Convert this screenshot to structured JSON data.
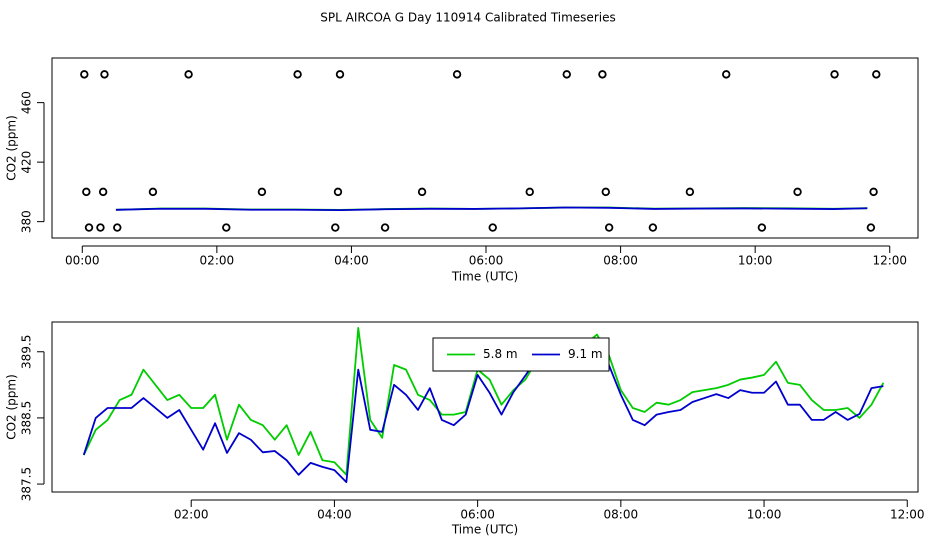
{
  "title": "SPL AIRCOA G  Day 110914  Calibrated Timeseries",
  "chart_data": [
    {
      "type": "line",
      "xlabel": "Time (UTC)",
      "ylabel": "CO2 (ppm)",
      "xlim": [
        -0.45,
        12.42
      ],
      "ylim": [
        369,
        490
      ],
      "xticks": [
        {
          "value": 0,
          "label": "00:00"
        },
        {
          "value": 2,
          "label": "02:00"
        },
        {
          "value": 4,
          "label": "04:00"
        },
        {
          "value": 6,
          "label": "06:00"
        },
        {
          "value": 8,
          "label": "08:00"
        },
        {
          "value": 10,
          "label": "10:00"
        },
        {
          "value": 12,
          "label": "12:00"
        }
      ],
      "yticks": [
        380,
        420,
        460
      ],
      "series": [
        {
          "color": "#000000",
          "marker": "circle",
          "x": [
            0.03,
            0.33,
            1.58,
            3.2,
            3.83,
            5.57,
            7.2,
            7.73,
            9.57,
            11.18,
            11.8
          ],
          "values": [
            479,
            479,
            479,
            479,
            479,
            479,
            479,
            479,
            479,
            479,
            479
          ]
        },
        {
          "color": "#000000",
          "marker": "circle",
          "x": [
            0.06,
            0.31,
            1.05,
            2.67,
            3.8,
            5.05,
            6.65,
            7.78,
            9.03,
            10.63,
            11.76
          ],
          "values": [
            400,
            400,
            400,
            400,
            400,
            400,
            400,
            400,
            400,
            400,
            400
          ]
        },
        {
          "color": "#000000",
          "marker": "circle",
          "x": [
            0.1,
            0.27,
            0.52,
            2.14,
            3.76,
            4.5,
            6.1,
            7.83,
            8.48,
            10.1,
            11.72
          ],
          "values": [
            376,
            376,
            376,
            376,
            376,
            376,
            376,
            376,
            376,
            376,
            376
          ]
        },
        {
          "color": "#00cc00",
          "x": [
            0.5,
            1.167,
            1.833,
            2.5,
            3.167,
            3.833,
            4.5,
            5.167,
            5.833,
            6.5,
            7.167,
            7.833,
            8.5,
            9.167,
            9.833,
            10.5,
            11.167,
            11.667
          ],
          "values": [
            387.94,
            388.85,
            388.85,
            388.17,
            388.17,
            387.86,
            388.47,
            388.85,
            388.59,
            388.92,
            389.45,
            389.45,
            388.73,
            388.92,
            389.11,
            389.0,
            388.65,
            389.03
          ]
        },
        {
          "color": "#0000cc",
          "x": [
            0.5,
            1.167,
            1.833,
            2.5,
            3.167,
            3.833,
            4.5,
            5.167,
            5.833,
            6.5,
            7.167,
            7.833,
            8.5,
            9.167,
            9.833,
            10.5,
            11.167,
            11.667
          ],
          "values": [
            387.94,
            388.65,
            388.62,
            387.97,
            388.0,
            387.76,
            388.32,
            388.62,
            388.55,
            388.89,
            389.48,
            389.3,
            388.55,
            388.8,
            388.88,
            388.7,
            388.47,
            388.98
          ]
        }
      ]
    },
    {
      "type": "line",
      "xlabel": "Time (UTC)",
      "ylabel": "CO2 (ppm)",
      "legend": "top",
      "xlim": [
        0.056,
        12.15
      ],
      "ylim": [
        387.38,
        389.95
      ],
      "xticks": [
        {
          "value": 2,
          "label": "02:00"
        },
        {
          "value": 4,
          "label": "04:00"
        },
        {
          "value": 6,
          "label": "06:00"
        },
        {
          "value": 8,
          "label": "08:00"
        },
        {
          "value": 10,
          "label": "10:00"
        },
        {
          "value": 12,
          "label": "12:00"
        }
      ],
      "yticks": [
        387.5,
        388.5,
        389.5
      ],
      "x": [
        0.5,
        0.667,
        0.833,
        1,
        1.167,
        1.333,
        1.5,
        1.667,
        1.833,
        2,
        2.167,
        2.333,
        2.5,
        2.667,
        2.833,
        3,
        3.167,
        3.333,
        3.5,
        3.667,
        3.833,
        4,
        4.167,
        4.333,
        4.5,
        4.667,
        4.833,
        5,
        5.167,
        5.333,
        5.5,
        5.667,
        5.833,
        6,
        6.167,
        6.333,
        6.5,
        6.667,
        6.833,
        7,
        7.167,
        7.333,
        7.5,
        7.667,
        7.833,
        8,
        8.167,
        8.333,
        8.5,
        8.667,
        8.833,
        9,
        9.167,
        9.333,
        9.5,
        9.667,
        9.833,
        10,
        10.167,
        10.333,
        10.5,
        10.667,
        10.833,
        11,
        11.167,
        11.333,
        11.5,
        11.667
      ],
      "series": [
        {
          "name": "5.8 m",
          "color": "#00cc00",
          "values": [
            387.94,
            388.32,
            388.47,
            388.77,
            388.85,
            389.23,
            389.0,
            388.77,
            388.85,
            388.65,
            388.65,
            388.85,
            388.17,
            388.7,
            388.47,
            388.39,
            388.17,
            388.39,
            387.94,
            388.29,
            387.86,
            387.83,
            387.64,
            389.86,
            388.47,
            388.2,
            389.3,
            389.23,
            388.85,
            388.77,
            388.55,
            388.55,
            388.59,
            389.23,
            389.08,
            388.7,
            388.92,
            389.08,
            389.38,
            389.41,
            389.45,
            389.53,
            389.61,
            389.76,
            389.45,
            388.92,
            388.65,
            388.59,
            388.73,
            388.7,
            388.77,
            388.89,
            388.92,
            388.95,
            389.0,
            389.08,
            389.11,
            389.15,
            389.35,
            389.03,
            389.0,
            388.77,
            388.62,
            388.62,
            388.65,
            388.5,
            388.7,
            389.03
          ]
        },
        {
          "name": "9.1 m",
          "color": "#0000cc",
          "values": [
            387.94,
            388.5,
            388.65,
            388.65,
            388.65,
            388.8,
            388.65,
            388.5,
            388.62,
            388.32,
            388.02,
            388.42,
            387.97,
            388.27,
            388.17,
            387.98,
            388.0,
            387.86,
            387.64,
            387.82,
            387.76,
            387.71,
            387.53,
            389.23,
            388.32,
            388.29,
            389.0,
            388.85,
            388.62,
            388.95,
            388.47,
            388.39,
            388.55,
            389.15,
            388.88,
            388.55,
            388.89,
            389.14,
            389.41,
            389.45,
            389.48,
            389.5,
            389.53,
            389.68,
            389.3,
            388.85,
            388.47,
            388.39,
            388.55,
            388.59,
            388.62,
            388.74,
            388.8,
            388.86,
            388.8,
            388.92,
            388.88,
            388.88,
            389.05,
            388.7,
            388.7,
            388.47,
            388.47,
            388.59,
            388.47,
            388.56,
            388.95,
            388.98
          ]
        }
      ]
    }
  ]
}
